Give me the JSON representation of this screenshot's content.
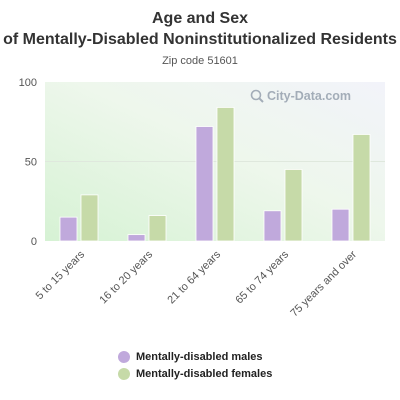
{
  "colors": {
    "males": "#c0a9dc",
    "females": "#c6daa8"
  },
  "watermark": {
    "icon": "search-icon",
    "text": "City-Data.com"
  },
  "chart_data": {
    "type": "bar",
    "title": "Age and Sex of Mentally-Disabled Noninstitutionalized Residents",
    "subtitle": "Zip code 51601",
    "categories": [
      "5 to 15 years",
      "16 to 20 years",
      "21 to 64 years",
      "65 to 74 years",
      "75 years and over"
    ],
    "series": [
      {
        "name": "Mentally-disabled males",
        "values": [
          15,
          4,
          72,
          19,
          20
        ]
      },
      {
        "name": "Mentally-disabled females",
        "values": [
          29,
          16,
          84,
          45,
          67
        ]
      }
    ],
    "ylim": [
      0,
      100
    ],
    "yticks": [
      0,
      50,
      100
    ],
    "legend": "bottom",
    "grid": true
  }
}
